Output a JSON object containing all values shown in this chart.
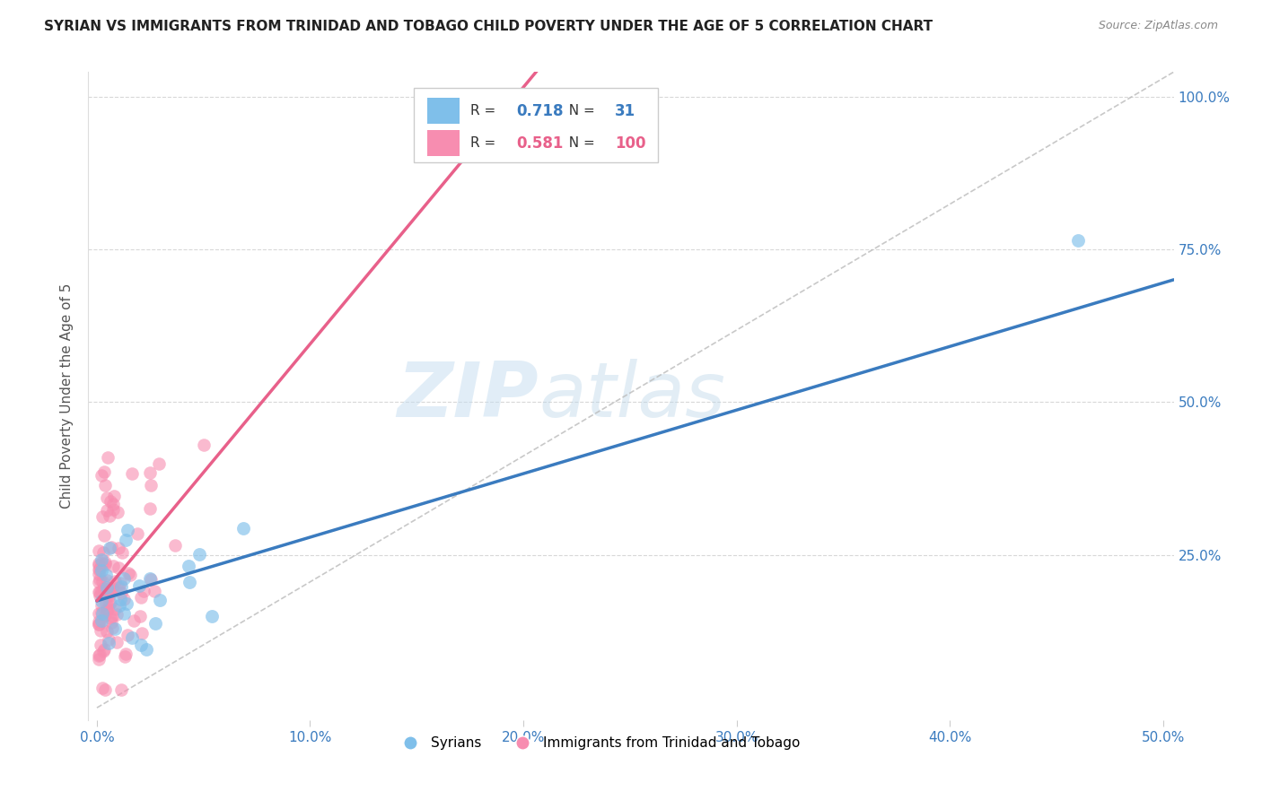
{
  "title": "SYRIAN VS IMMIGRANTS FROM TRINIDAD AND TOBAGO CHILD POVERTY UNDER THE AGE OF 5 CORRELATION CHART",
  "source": "Source: ZipAtlas.com",
  "ylabel": "Child Poverty Under the Age of 5",
  "xlim": [
    -0.004,
    0.505
  ],
  "ylim": [
    -0.02,
    1.04
  ],
  "xtick_labels": [
    "0.0%",
    "10.0%",
    "20.0%",
    "30.0%",
    "40.0%",
    "50.0%"
  ],
  "xtick_vals": [
    0.0,
    0.1,
    0.2,
    0.3,
    0.4,
    0.5
  ],
  "ytick_labels": [
    "25.0%",
    "50.0%",
    "75.0%",
    "100.0%"
  ],
  "ytick_vals": [
    0.25,
    0.5,
    0.75,
    1.0
  ],
  "watermark_zip": "ZIP",
  "watermark_atlas": "atlas",
  "blue_color": "#7fbfea",
  "pink_color": "#f78db0",
  "blue_line_color": "#3a7bbf",
  "pink_line_color": "#e8608a",
  "grid_color": "#d8d8d8",
  "R_blue": 0.718,
  "N_blue": 31,
  "R_pink": 0.581,
  "N_pink": 100,
  "legend_label_blue": "Syrians",
  "legend_label_pink": "Immigrants from Trinidad and Tobago",
  "blue_intercept": 0.175,
  "blue_slope": 1.04,
  "pink_intercept": 0.175,
  "pink_slope": 4.2
}
